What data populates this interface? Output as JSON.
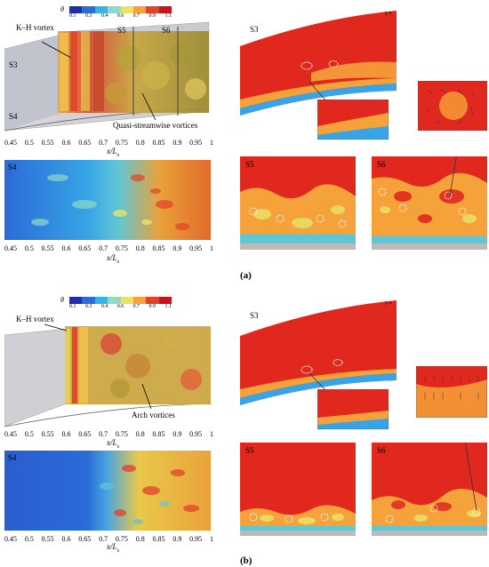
{
  "colorbar": {
    "symbol": "θ",
    "ticks": [
      "0.1",
      "0.3",
      "0.4",
      "0.6",
      "0.7",
      "0.9",
      "1.1"
    ],
    "colors": [
      "#1f2fa8",
      "#2a6bd8",
      "#36b4e6",
      "#8fd9c6",
      "#e9e36a",
      "#f6a23a",
      "#e2412a",
      "#c8131c"
    ]
  },
  "axis_ticks": [
    "0.45",
    "0.5",
    "0.55",
    "0.6",
    "0.65",
    "0.7",
    "0.75",
    "0.8",
    "0.85",
    "0.9",
    "0.95",
    "1"
  ],
  "xlabel": "x/L",
  "xlabel_sub": "x",
  "axes_small": {
    "y": "y",
    "x": "x",
    "z": "z"
  },
  "panel_a": {
    "label": "(a)",
    "kh_label": "K–H vortex",
    "s3": "S3",
    "s4": "S4",
    "s5": "S5",
    "s6": "S6",
    "vortex_label": "Quasi-streamwise vortices"
  },
  "panel_b": {
    "label": "(b)",
    "kh_label": "K–H vortex",
    "s3": "S3",
    "s4": "S4",
    "s5": "S5",
    "s6": "S6",
    "vortex_label": "Arch vortices"
  }
}
